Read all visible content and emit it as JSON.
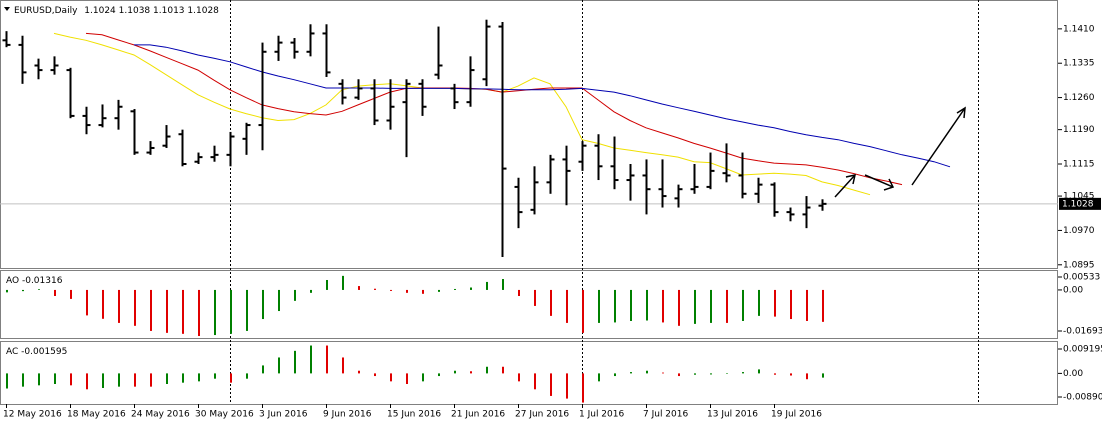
{
  "chart_data": [
    {
      "type": "ohlc",
      "title": "EURUSD,Daily",
      "color": "#000000",
      "categories": [
        "12 May 2016",
        null,
        null,
        null,
        "18 May 2016",
        null,
        null,
        null,
        "24 May 2016",
        null,
        null,
        null,
        "30 May 2016",
        null,
        null,
        null,
        "3 Jun 2016",
        null,
        null,
        null,
        "9 Jun 2016",
        null,
        null,
        null,
        "15 Jun 2016",
        null,
        null,
        null,
        "21 Jun 2016",
        null,
        null,
        null,
        "27 Jun 2016",
        null,
        null,
        null,
        "1 Jul 2016",
        null,
        null,
        null,
        "7 Jul 2016",
        null,
        null,
        null,
        "13 Jul 2016",
        null,
        null,
        null,
        "19 Jul 2016",
        null,
        null,
        null
      ],
      "open": [
        1.1385,
        1.1375,
        1.133,
        1.132,
        1.132,
        1.122,
        1.12,
        1.1215,
        1.123,
        1.114,
        1.1155,
        1.118,
        1.112,
        1.113,
        1.1135,
        1.117,
        1.12,
        1.136,
        1.138,
        1.136,
        1.14,
        1.129,
        1.126,
        1.128,
        1.121,
        1.125,
        1.129,
        1.131,
        1.128,
        1.125,
        1.13,
        1.1415,
        1.1065,
        1.1015,
        1.1075,
        1.1125,
        1.112,
        1.1155,
        1.111,
        1.108,
        1.109,
        1.106,
        1.104,
        1.106,
        1.1065,
        1.1095,
        1.109,
        1.105,
        1.107,
        1.101,
        1.1005,
        1.1024
      ],
      "high": [
        1.1405,
        1.1395,
        1.1345,
        1.135,
        1.1325,
        1.124,
        1.1245,
        1.1255,
        1.1235,
        1.1165,
        1.12,
        1.119,
        1.114,
        1.1155,
        1.1185,
        1.1205,
        1.138,
        1.1395,
        1.139,
        1.142,
        1.142,
        1.13,
        1.13,
        1.13,
        1.13,
        1.13,
        1.13,
        1.1415,
        1.129,
        1.135,
        1.143,
        1.1425,
        1.1085,
        1.111,
        1.1135,
        1.1155,
        1.1165,
        1.118,
        1.1175,
        1.1115,
        1.1125,
        1.1125,
        1.107,
        1.1115,
        1.114,
        1.116,
        1.114,
        1.1085,
        1.1075,
        1.102,
        1.1045,
        1.1038
      ],
      "low": [
        1.137,
        1.129,
        1.13,
        1.131,
        1.1215,
        1.118,
        1.1195,
        1.119,
        1.1135,
        1.1135,
        1.115,
        1.111,
        1.1115,
        1.112,
        1.111,
        1.1135,
        1.1145,
        1.134,
        1.1345,
        1.135,
        1.1305,
        1.1245,
        1.1255,
        1.12,
        1.119,
        1.113,
        1.122,
        1.13,
        1.1235,
        1.124,
        1.1285,
        1.0912,
        1.0975,
        1.1005,
        1.105,
        1.1025,
        1.11,
        1.108,
        1.106,
        1.1035,
        1.1005,
        1.102,
        1.102,
        1.105,
        1.106,
        1.1075,
        1.104,
        1.103,
        1.1,
        1.099,
        1.0975,
        1.1013
      ],
      "close": [
        1.1375,
        1.1315,
        1.132,
        1.133,
        1.122,
        1.12,
        1.1215,
        1.124,
        1.114,
        1.115,
        1.1175,
        1.1115,
        1.113,
        1.1135,
        1.1175,
        1.12,
        1.136,
        1.138,
        1.136,
        1.14,
        1.1315,
        1.126,
        1.128,
        1.121,
        1.124,
        1.129,
        1.124,
        1.133,
        1.125,
        1.132,
        1.1415,
        1.1105,
        1.101,
        1.1075,
        1.1125,
        1.11,
        1.1155,
        1.111,
        1.108,
        1.109,
        1.106,
        1.1045,
        1.106,
        1.1065,
        1.11,
        1.109,
        1.105,
        1.107,
        1.101,
        1.1005,
        1.102,
        1.1028
      ],
      "series": [
        {
          "color": "#f0e000",
          "shift": 3,
          "values": [
            1.14,
            1.1392,
            1.1385,
            1.1375,
            1.1364,
            1.1353,
            1.1332,
            1.131,
            1.1288,
            1.1266,
            1.125,
            1.1235,
            1.1225,
            1.1216,
            1.121,
            1.1212,
            1.1225,
            1.1244,
            1.1277,
            1.1285,
            1.1288,
            1.129,
            1.1286,
            1.1281,
            1.128,
            1.128,
            1.1279,
            1.1278,
            1.1272,
            1.1285,
            1.1303,
            1.129,
            1.124,
            1.1168,
            1.116,
            1.115,
            1.1145,
            1.114,
            1.1135,
            1.113,
            1.112,
            1.1118,
            1.1105,
            1.1091,
            1.1093,
            1.1095,
            1.1093,
            1.109,
            1.1076,
            1.1068,
            1.1058,
            1.1048
          ]
        },
        {
          "color": "#d00000",
          "shift": 5,
          "values": [
            1.14,
            1.1397,
            1.1386,
            1.1375,
            1.1362,
            1.1348,
            1.1334,
            1.132,
            1.1298,
            1.1277,
            1.126,
            1.1244,
            1.1236,
            1.1229,
            1.1225,
            1.1222,
            1.123,
            1.1244,
            1.1258,
            1.1272,
            1.128,
            1.1281,
            1.1281,
            1.1281,
            1.128,
            1.1278,
            1.1272,
            1.1275,
            1.1278,
            1.1281,
            1.1281,
            1.1281,
            1.1255,
            1.1229,
            1.121,
            1.1194,
            1.1183,
            1.1172,
            1.116,
            1.115,
            1.1139,
            1.1128,
            1.1122,
            1.1117,
            1.1115,
            1.1113,
            1.1108,
            1.1102,
            1.1094,
            1.1085,
            1.1078,
            1.107
          ]
        },
        {
          "color": "#0000b0",
          "shift": 8,
          "values": [
            1.1375,
            1.1375,
            1.137,
            1.1362,
            1.1353,
            1.1346,
            1.1338,
            1.1327,
            1.1316,
            1.1307,
            1.1299,
            1.129,
            1.1281,
            1.1281,
            1.1281,
            1.1281,
            1.128,
            1.128,
            1.128,
            1.128,
            1.128,
            1.1279,
            1.1279,
            1.1278,
            1.1277,
            1.1277,
            1.1277,
            1.1278,
            1.128,
            1.1276,
            1.1272,
            1.1264,
            1.1255,
            1.1246,
            1.1238,
            1.123,
            1.1222,
            1.1214,
            1.1207,
            1.12,
            1.1194,
            1.1186,
            1.1179,
            1.1173,
            1.1168,
            1.116,
            1.1153,
            1.1144,
            1.1135,
            1.1128,
            1.112,
            1.1109
          ]
        }
      ],
      "ylim": [
        1.0888,
        1.1473
      ],
      "yticks": [
        {
          "value": 1.141,
          "label": "1.1410"
        },
        1.1335,
        {
          "value": 1.126,
          "label": "1.1260"
        },
        {
          "value": 1.119,
          "label": "1.1190"
        },
        1.1115,
        1.1045,
        {
          "value": 1.097,
          "label": "1.0970"
        },
        1.0895
      ]
    },
    {
      "type": "bar",
      "title": "AO",
      "up_color": "#008000",
      "down_color": "#e00000",
      "values": [
        -0.001,
        -0.0005,
        0.0003,
        -0.0025,
        -0.0037,
        -0.0105,
        -0.0119,
        -0.0136,
        -0.0148,
        -0.0169,
        -0.0177,
        -0.0181,
        -0.019,
        -0.0186,
        -0.0181,
        -0.0169,
        -0.012,
        -0.0087,
        -0.0045,
        -0.0012,
        0.0041,
        0.0058,
        0.0016,
        0.0005,
        -0.0004,
        -0.0012,
        -0.0016,
        -0.0008,
        0.0004,
        0.001,
        0.0033,
        0.0045,
        -0.0025,
        -0.0066,
        -0.0107,
        -0.0136,
        -0.0177,
        -0.0136,
        -0.0134,
        -0.0128,
        -0.0126,
        -0.0134,
        -0.0148,
        -0.014,
        -0.0136,
        -0.0136,
        -0.0128,
        -0.0107,
        -0.011,
        -0.012,
        -0.0128,
        -0.01316
      ],
      "ylim": [
        -0.01982,
        0.00822
      ],
      "yticks": [
        0.00533,
        {
          "value": 0,
          "label": "0.00"
        },
        -0.01693
      ]
    },
    {
      "type": "bar",
      "title": "AC",
      "up_color": "#008000",
      "down_color": "#e00000",
      "values": [
        -0.0057,
        -0.005,
        -0.0045,
        -0.004,
        -0.0045,
        -0.006,
        -0.0055,
        -0.005,
        -0.005,
        -0.005,
        -0.004,
        -0.0035,
        -0.003,
        -0.002,
        -0.0035,
        -0.002,
        0.003,
        0.006,
        0.0085,
        0.0105,
        0.0105,
        0.006,
        0.001,
        -0.001,
        -0.003,
        -0.004,
        -0.003,
        -0.001,
        0.001,
        0.0008,
        0.0025,
        0.0025,
        -0.003,
        -0.006,
        -0.0085,
        -0.0095,
        -0.011,
        -0.003,
        -0.001,
        0.0005,
        0.001,
        0.0003,
        -0.001,
        -0.0005,
        -0.0004,
        -0.0002,
        0.0005,
        0.0015,
        -0.0005,
        -0.0008,
        -0.0022,
        -0.001595
      ],
      "ylim": [
        -0.01154,
        0.01221
      ],
      "yticks": [
        0.009195,
        {
          "value": 0,
          "label": "0.00"
        },
        {
          "value": -0.0089,
          "label": "-0.00890"
        }
      ]
    }
  ]
}
